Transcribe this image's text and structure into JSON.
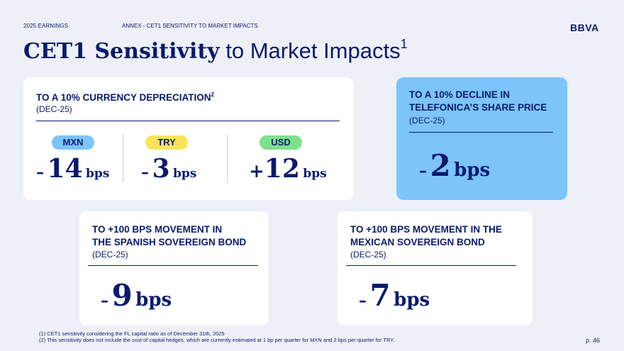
{
  "header": {
    "section": "2025 EARNINGS",
    "subsection": "ANNEX - CET1 SENSITIVITY TO MARKET IMPACTS",
    "logo": "BBVA"
  },
  "title": {
    "bold": "CET1 Sensitivity",
    "light": " to Market Impacts",
    "footnote_ref": "1"
  },
  "currency_card": {
    "heading": "TO A 10% CURRENCY DEPRECIATION",
    "heading_ref": "2",
    "date": "(DEC-25)",
    "items": [
      {
        "label": "MXN",
        "sign": "–",
        "value": "14",
        "unit": "bps",
        "pill_color": "#7cc4fa"
      },
      {
        "label": "TRY",
        "sign": "–",
        "value": "3",
        "unit": "bps",
        "pill_color": "#f8e45a"
      },
      {
        "label": "USD",
        "sign": "+",
        "value": "12",
        "unit": "bps",
        "pill_color": "#7de08a"
      }
    ]
  },
  "telefonica_card": {
    "heading_line1": "TO A 10% DECLINE IN",
    "heading_line2": "TELEFONICA’S SHARE PRICE",
    "date": "(DEC-25)",
    "sign": "–",
    "value": "2",
    "unit": "bps"
  },
  "spanish_card": {
    "heading_line1": "TO +100 BPS MOVEMENT IN",
    "heading_line2": "THE SPANISH SOVEREIGN BOND",
    "date": "(DEC-25)",
    "sign": "–",
    "value": "9",
    "unit": "bps"
  },
  "mexican_card": {
    "heading_line1": "TO +100 BPS MOVEMENT IN THE",
    "heading_line2": "MEXICAN SOVEREIGN BOND",
    "date": "(DEC-25)",
    "sign": "–",
    "value": "7",
    "unit": "bps"
  },
  "footnotes": {
    "note1": "(1) CET1 sensitivity considering the FL capital ratio as of December 31th, 2025",
    "note2": "(2) This sensitivity does not include the cost of capital hedges, which are currently estimated at 1 bp per quarter for MXN and 2 bps per quarter for TRY."
  },
  "page": "p. 46"
}
